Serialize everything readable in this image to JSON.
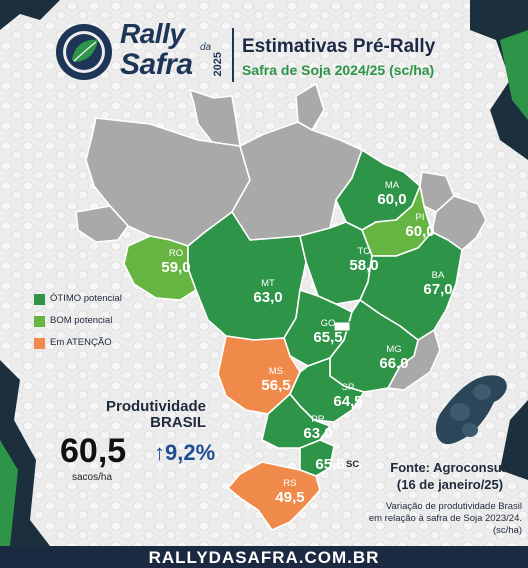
{
  "brand": {
    "line1": "Rally",
    "da": "da",
    "line2": "Safra",
    "year": "2025"
  },
  "header": {
    "title": "Estimativas Pré-Rally",
    "subtitle": "Safra de Soja 2024/25 (sc/ha)"
  },
  "colors": {
    "otimo": "#2e9447",
    "bom": "#66b542",
    "atencao": "#f08a4b",
    "other": "#a9a9a9",
    "navy": "#1d3557",
    "blue": "#1f4e95"
  },
  "legend": [
    {
      "label": "ÓTIMO potencial",
      "color": "#2e9447"
    },
    {
      "label": "BOM potencial",
      "color": "#66b542"
    },
    {
      "label": "Em ATENÇÃO",
      "color": "#f08a4b"
    }
  ],
  "states": [
    {
      "code": "MA",
      "value": "60,0",
      "category": "otimo"
    },
    {
      "code": "PI",
      "value": "60,0",
      "category": "bom"
    },
    {
      "code": "TO",
      "value": "58,0",
      "category": "otimo"
    },
    {
      "code": "BA",
      "value": "67,0",
      "category": "otimo"
    },
    {
      "code": "RO",
      "value": "59,0",
      "category": "bom"
    },
    {
      "code": "MT",
      "value": "63,0",
      "category": "otimo"
    },
    {
      "code": "GO",
      "value": "65,5",
      "category": "otimo"
    },
    {
      "code": "MG",
      "value": "66,0",
      "category": "otimo"
    },
    {
      "code": "MS",
      "value": "56,5",
      "category": "atencao"
    },
    {
      "code": "SP",
      "value": "64,5",
      "category": "otimo"
    },
    {
      "code": "PR",
      "value": "63,0",
      "category": "otimo"
    },
    {
      "code": "SC",
      "value": "65,5",
      "category": "otimo"
    },
    {
      "code": "RS",
      "value": "49,5",
      "category": "atencao"
    }
  ],
  "national": {
    "label_line1": "Produtividade",
    "label_line2": "BRASIL",
    "value": "60,5",
    "unit": "sacos/ha",
    "growth": "9,2%"
  },
  "source": {
    "line1": "Fonte: Agroconsult",
    "line2": "(16 de janeiro/25)"
  },
  "note": {
    "line1": "Variação de produtividade Brasil",
    "line2": "em relação à safra de Soja 2023/24.",
    "line3": "(sc/ha)"
  },
  "footer": {
    "url": "RALLYDASAFRA.COM.BR"
  }
}
